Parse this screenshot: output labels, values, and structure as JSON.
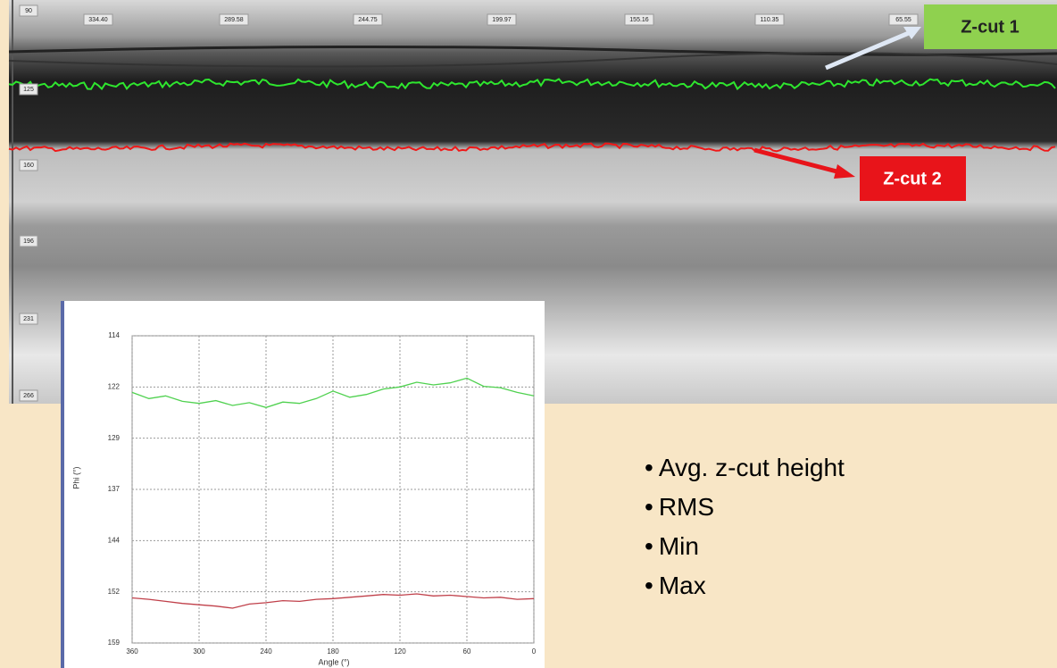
{
  "image": {
    "top_labels": [
      "334.40",
      "289.58",
      "244.75",
      "199.97",
      "155.16",
      "110.35",
      "65.55"
    ],
    "left_labels": [
      "90",
      "125",
      "160",
      "196",
      "231",
      "266"
    ],
    "callouts": [
      "Z-cut 1",
      "Z-cut 2"
    ]
  },
  "chart_data": {
    "type": "line",
    "x_label": "Angle (°)",
    "y_label": "Phi (°)",
    "x": [
      360,
      345,
      330,
      315,
      300,
      285,
      270,
      255,
      240,
      225,
      210,
      195,
      180,
      165,
      150,
      135,
      120,
      105,
      90,
      75,
      60,
      45,
      30,
      15,
      0
    ],
    "series": [
      {
        "color": "#4fd14f",
        "values": [
          122.3,
          123.2,
          122.8,
          123.6,
          123.9,
          123.5,
          124.2,
          123.8,
          124.5,
          123.7,
          123.9,
          123.2,
          122.1,
          123.0,
          122.6,
          121.8,
          121.5,
          120.8,
          121.2,
          120.9,
          120.2,
          121.4,
          121.6,
          122.3,
          122.8
        ]
      },
      {
        "color": "#c0404a",
        "values": [
          152.4,
          152.6,
          152.9,
          153.2,
          153.4,
          153.6,
          153.9,
          153.3,
          153.1,
          152.8,
          152.9,
          152.6,
          152.5,
          152.3,
          152.1,
          151.9,
          152.0,
          151.8,
          152.1,
          152.0,
          152.2,
          152.4,
          152.3,
          152.6,
          152.5
        ]
      }
    ],
    "xlim": [
      360,
      0
    ],
    "xticks": [
      360,
      300,
      240,
      180,
      120,
      60,
      0
    ],
    "ylim": [
      159,
      114
    ],
    "yticks": [
      114,
      {
        "value": 121.5,
        "label": "122"
      },
      129,
      {
        "value": 136.5,
        "label": "137"
      },
      144,
      {
        "value": 151.5,
        "label": "152"
      },
      159
    ],
    "grid": true
  },
  "bullets": [
    "Avg. z-cut height",
    "RMS",
    "Min",
    "Max"
  ]
}
